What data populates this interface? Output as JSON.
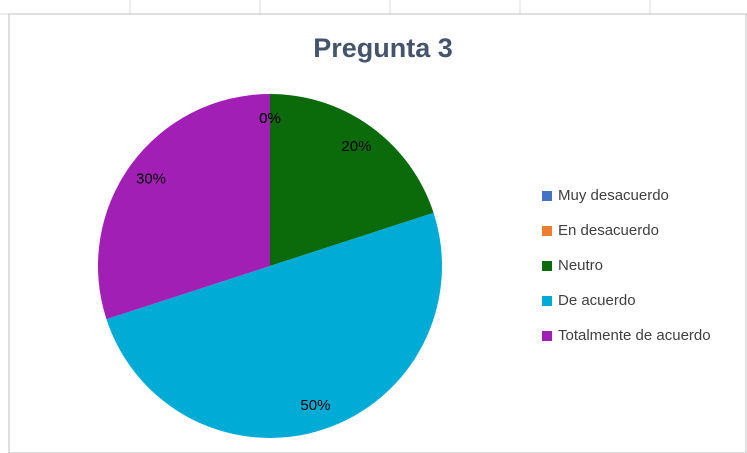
{
  "chart_data": {
    "type": "pie",
    "title": "Pregunta 3",
    "categories": [
      "Muy desacuerdo",
      "En desacuerdo",
      "Neutro",
      "De acuerdo",
      "Totalmente de acuerdo"
    ],
    "values": [
      0,
      0,
      20,
      50,
      30
    ],
    "value_labels": [
      "0%",
      "0%",
      "20%",
      "50%",
      "30%"
    ],
    "colors": [
      "#4472c4",
      "#ed7d31",
      "#0b6b0b",
      "#00acd6",
      "#a21fb5"
    ],
    "legend": "right"
  }
}
